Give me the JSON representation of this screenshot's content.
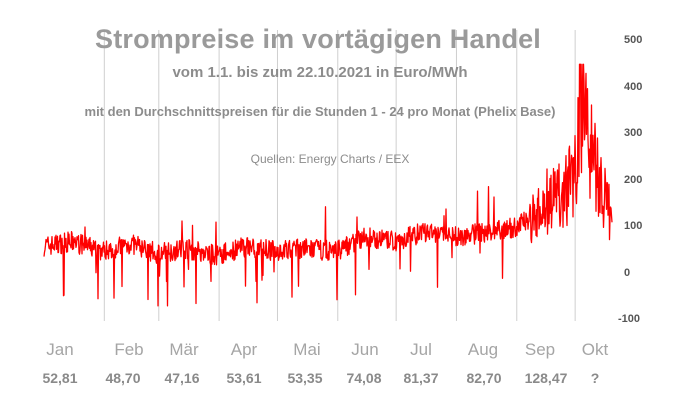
{
  "chart_data": {
    "type": "line",
    "title": "Strompreise im vortägigen Handel",
    "subtitle": "vom 1.1. bis zum 22.10.2021 in Euro/MWh",
    "subtitle2": "mit den Durchschnittspreisen für die Stunden 1 - 24 pro Monat (Phelix Base)",
    "source": "Quellen: Energy Charts / EEX",
    "x_range": [
      "2021-01-01",
      "2021-10-22"
    ],
    "ylim": [
      -100,
      500
    ],
    "yticks": [
      "500",
      "400",
      "300",
      "200",
      "100",
      "0",
      "-100"
    ],
    "grid": "vertical month separators",
    "series": [
      {
        "color": "#ff0000",
        "x": [
          "2021-01-01",
          "2021-01-15",
          "2021-01-31",
          "2021-02-15",
          "2021-02-28",
          "2021-03-15",
          "2021-03-31",
          "2021-04-15",
          "2021-04-30",
          "2021-05-15",
          "2021-05-31",
          "2021-06-15",
          "2021-06-30",
          "2021-07-15",
          "2021-07-31",
          "2021-08-15",
          "2021-08-31",
          "2021-09-15",
          "2021-09-30",
          "2021-10-05",
          "2021-10-10",
          "2021-10-15",
          "2021-10-22"
        ],
        "values": [
          60,
          70,
          50,
          65,
          45,
          55,
          40,
          60,
          50,
          55,
          50,
          80,
          70,
          90,
          80,
          90,
          100,
          140,
          200,
          420,
          250,
          180,
          90
        ]
      }
    ],
    "months": [
      "Jan",
      "Feb",
      "Mär",
      "Apr",
      "Mai",
      "Jun",
      "Jul",
      "Aug",
      "Sep",
      "Okt"
    ],
    "monthly_avg": [
      "52,81",
      "48,70",
      "47,16",
      "53,61",
      "53,35",
      "74,08",
      "81,37",
      "82,70",
      "128,47",
      "?"
    ]
  }
}
